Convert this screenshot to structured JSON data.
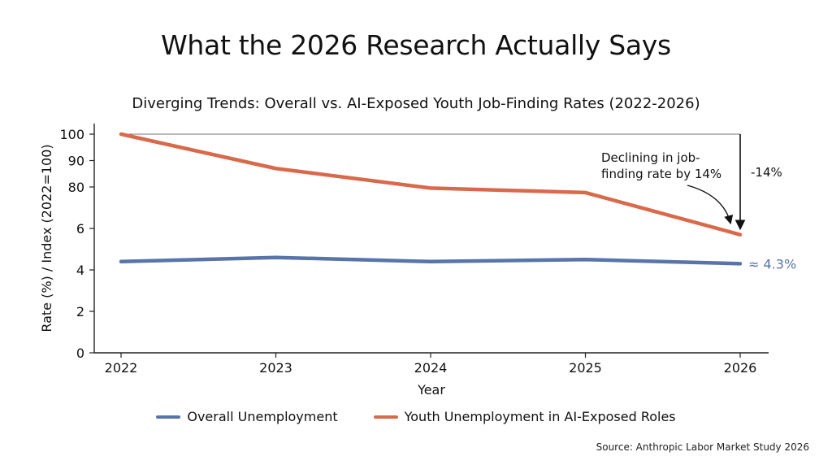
{
  "page": {
    "title": "What the 2026 Research Actually Says",
    "source": "Source: Anthropic Labor Market Study 2026"
  },
  "colors": {
    "overall": "#5874a8",
    "youth": "#d9694b",
    "axis": "#222222",
    "annotation_line": "#777777"
  },
  "chart_data": {
    "type": "line",
    "title": "Diverging Trends: Overall vs. AI-Exposed Youth Job-Finding Rates (2022-2026)",
    "xlabel": "Year",
    "ylabel": "Rate (%) / Index (2022=100)",
    "x": [
      "2022",
      "2023",
      "2024",
      "2025",
      "2026"
    ],
    "yticks": [
      0,
      2,
      4,
      6,
      80,
      90,
      100
    ],
    "series": [
      {
        "name": "Overall Unemployment",
        "color": "#5874a8",
        "values": [
          4.4,
          4.6,
          4.4,
          4.5,
          4.3
        ]
      },
      {
        "name": "Youth Unemployment in AI-Exposed Roles",
        "color": "#d9694b",
        "values": [
          100,
          87,
          78,
          70,
          5.7
        ]
      }
    ],
    "annotations": {
      "end_label": "≈ 4.3%",
      "callout": "Declining in job-finding rate by 14%",
      "callout_line1": "Declining in job-",
      "callout_line2": "finding rate by 14%",
      "change": "-14%"
    },
    "grid": false,
    "legend_position": "bottom"
  }
}
